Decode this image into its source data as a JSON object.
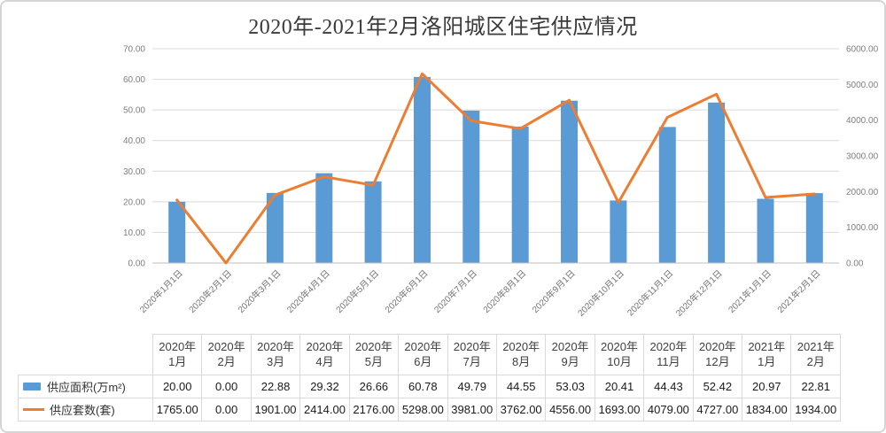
{
  "title": "2020年-2021年2月洛阳城区住宅供应情况",
  "colors": {
    "bar": "#5B9BD5",
    "line": "#ED7D31",
    "gridline": "#D9D9D9",
    "axis_line": "#BFBFBF",
    "axis_text": "#7F7F7F",
    "table_border": "#D9D9D9",
    "title_text": "#3A3A3A"
  },
  "chart_data": {
    "type": "combo-bar-line",
    "title": "2020年-2021年2月洛阳城区住宅供应情况",
    "categories": [
      "2020年1月1日",
      "2020年2月1日",
      "2020年3月1日",
      "2020年4月1日",
      "2020年5月1日",
      "2020年6月1日",
      "2020年7月1日",
      "2020年8月1日",
      "2020年9月1日",
      "2020年10月1日",
      "2020年11月1日",
      "2020年12月1日",
      "2021年1月1日",
      "2021年2月1日"
    ],
    "series": [
      {
        "name": "供应面积(万m²)",
        "type": "bar",
        "y_axis": "left",
        "color": "#5B9BD5",
        "values": [
          20.0,
          0.0,
          22.88,
          29.32,
          26.66,
          60.78,
          49.79,
          44.55,
          53.03,
          20.41,
          44.43,
          52.42,
          20.97,
          22.81
        ]
      },
      {
        "name": "供应套数(套)",
        "type": "line",
        "y_axis": "right",
        "color": "#ED7D31",
        "values": [
          1765,
          0,
          1901,
          2414,
          2176,
          5298,
          3981,
          3762,
          4556,
          1693,
          4079,
          4727,
          1834,
          1934
        ]
      }
    ],
    "left_axis": {
      "min": 0,
      "max": 70,
      "step": 10,
      "ticks": [
        "0.00",
        "10.00",
        "20.00",
        "30.00",
        "40.00",
        "50.00",
        "60.00",
        "70.00"
      ]
    },
    "right_axis": {
      "min": 0,
      "max": 6000,
      "step": 1000,
      "ticks": [
        "0.00",
        "1000.00",
        "2000.00",
        "3000.00",
        "4000.00",
        "5000.00",
        "6000.00"
      ]
    },
    "grid": true,
    "legend_position": "table-left"
  },
  "table": {
    "col_headers": [
      "2020年\n1月",
      "2020年\n2月",
      "2020年\n3月",
      "2020年\n4月",
      "2020年\n5月",
      "2020年\n6月",
      "2020年\n7月",
      "2020年\n8月",
      "2020年\n9月",
      "2020年\n10月",
      "2020年\n11月",
      "2020年\n12月",
      "2021年\n1月",
      "2021年\n2月"
    ],
    "rows": [
      {
        "label": "供应面积(万m²)",
        "swatch": "bar",
        "values": [
          "20.00",
          "0.00",
          "22.88",
          "29.32",
          "26.66",
          "60.78",
          "49.79",
          "44.55",
          "53.03",
          "20.41",
          "44.43",
          "52.42",
          "20.97",
          "22.81"
        ]
      },
      {
        "label": "供应套数(套)",
        "swatch": "line",
        "values": [
          "1765.00",
          "0.00",
          "1901.00",
          "2414.00",
          "2176.00",
          "5298.00",
          "3981.00",
          "3762.00",
          "4556.00",
          "1693.00",
          "4079.00",
          "4727.00",
          "1834.00",
          "1934.00"
        ]
      }
    ]
  }
}
